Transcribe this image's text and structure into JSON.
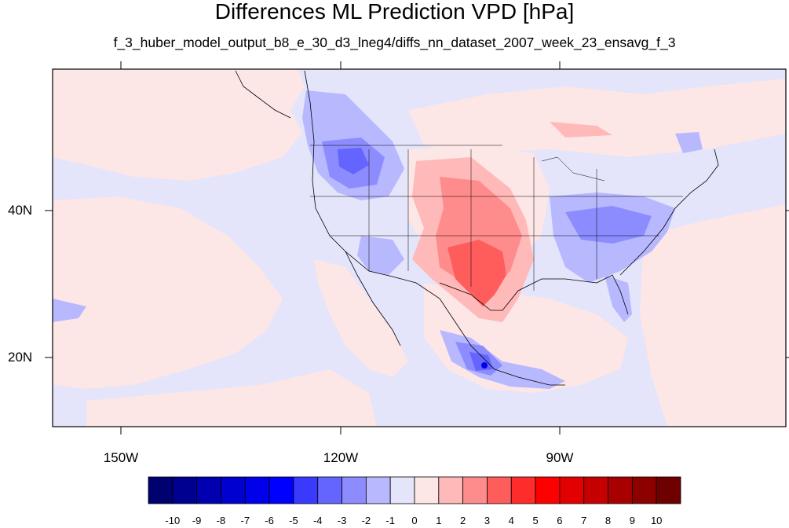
{
  "title": "Differences ML Prediction VPD [hPa]",
  "subtitle": "f_3_huber_model_output_b8_e_30_d3_lneg4/diffs_nn_dataset_2007_week_23_ensavg_f_3",
  "axes": {
    "lat_labels": [
      "40N",
      "20N"
    ],
    "lon_labels": [
      "150W",
      "120W",
      "90W"
    ]
  },
  "colorbar": {
    "labels": [
      "-10",
      "-9",
      "-8",
      "-7",
      "-6",
      "-5",
      "-4",
      "-3",
      "-2",
      "-1",
      "0",
      "1",
      "2",
      "3",
      "4",
      "5",
      "6",
      "7",
      "8",
      "9",
      "10"
    ],
    "colors": [
      "#00006e",
      "#000090",
      "#0000b0",
      "#0000cf",
      "#0000ea",
      "#0000ff",
      "#3a3aff",
      "#6464ff",
      "#8c8cff",
      "#b8b8ff",
      "#e4e4fb",
      "#fde6e6",
      "#ffb9b9",
      "#ff8c8c",
      "#ff5c5c",
      "#ff2c2c",
      "#ff0000",
      "#e20000",
      "#c60000",
      "#a80000",
      "#8c0000",
      "#6e0000"
    ]
  },
  "colors": {
    "background_field": "#e4e4fb",
    "light_positive": "#fde6e6",
    "outline": "#000000"
  }
}
